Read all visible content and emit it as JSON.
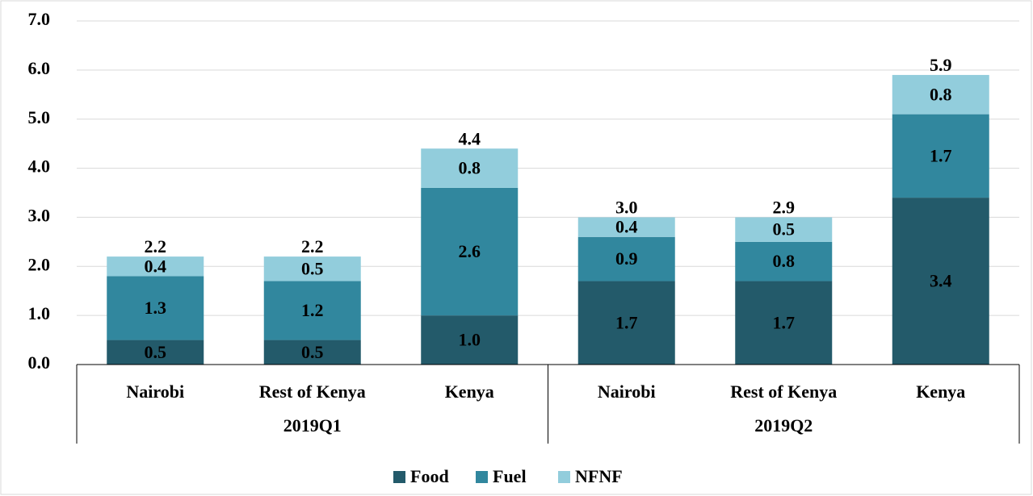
{
  "chart_data": {
    "type": "stacked_bar",
    "categories": [
      "Nairobi",
      "Rest of Kenya",
      "Kenya",
      "Nairobi",
      "Rest of Kenya",
      "Kenya"
    ],
    "groups": [
      "2019Q1",
      "2019Q2"
    ],
    "series": [
      {
        "name": "Food",
        "color": "#235a6a",
        "values": [
          0.5,
          0.5,
          1.0,
          1.7,
          1.7,
          3.4
        ],
        "value_labels": [
          "0.5",
          "0.5",
          "1.0",
          "1.7",
          "1.7",
          "3.4"
        ]
      },
      {
        "name": "Fuel",
        "color": "#31879e",
        "values": [
          1.3,
          1.2,
          2.6,
          0.9,
          0.8,
          1.7
        ]
      },
      {
        "name": "NFNF",
        "color": "#92cddc",
        "values": [
          0.4,
          0.5,
          0.8,
          0.4,
          0.5,
          0.8
        ]
      }
    ],
    "totals": [
      2.2,
      2.2,
      4.4,
      3.0,
      2.9,
      5.9
    ],
    "totals_labels": [
      "2.2",
      "2.2",
      "4.4",
      "3.0",
      "2.9",
      "5.9"
    ],
    "ylim": [
      0,
      7
    ],
    "yticks": [
      {
        "value": 0,
        "label": "0.0"
      },
      {
        "value": 1,
        "label": "1.0"
      },
      {
        "value": 2,
        "label": "2.0"
      },
      {
        "value": 3,
        "label": "3.0"
      },
      {
        "value": 4,
        "label": "4.0"
      },
      {
        "value": 5,
        "label": "5.0"
      },
      {
        "value": 6,
        "label": "6.0"
      },
      {
        "value": 7,
        "label": "7.0"
      }
    ],
    "grid": true,
    "legend": "bottom"
  }
}
